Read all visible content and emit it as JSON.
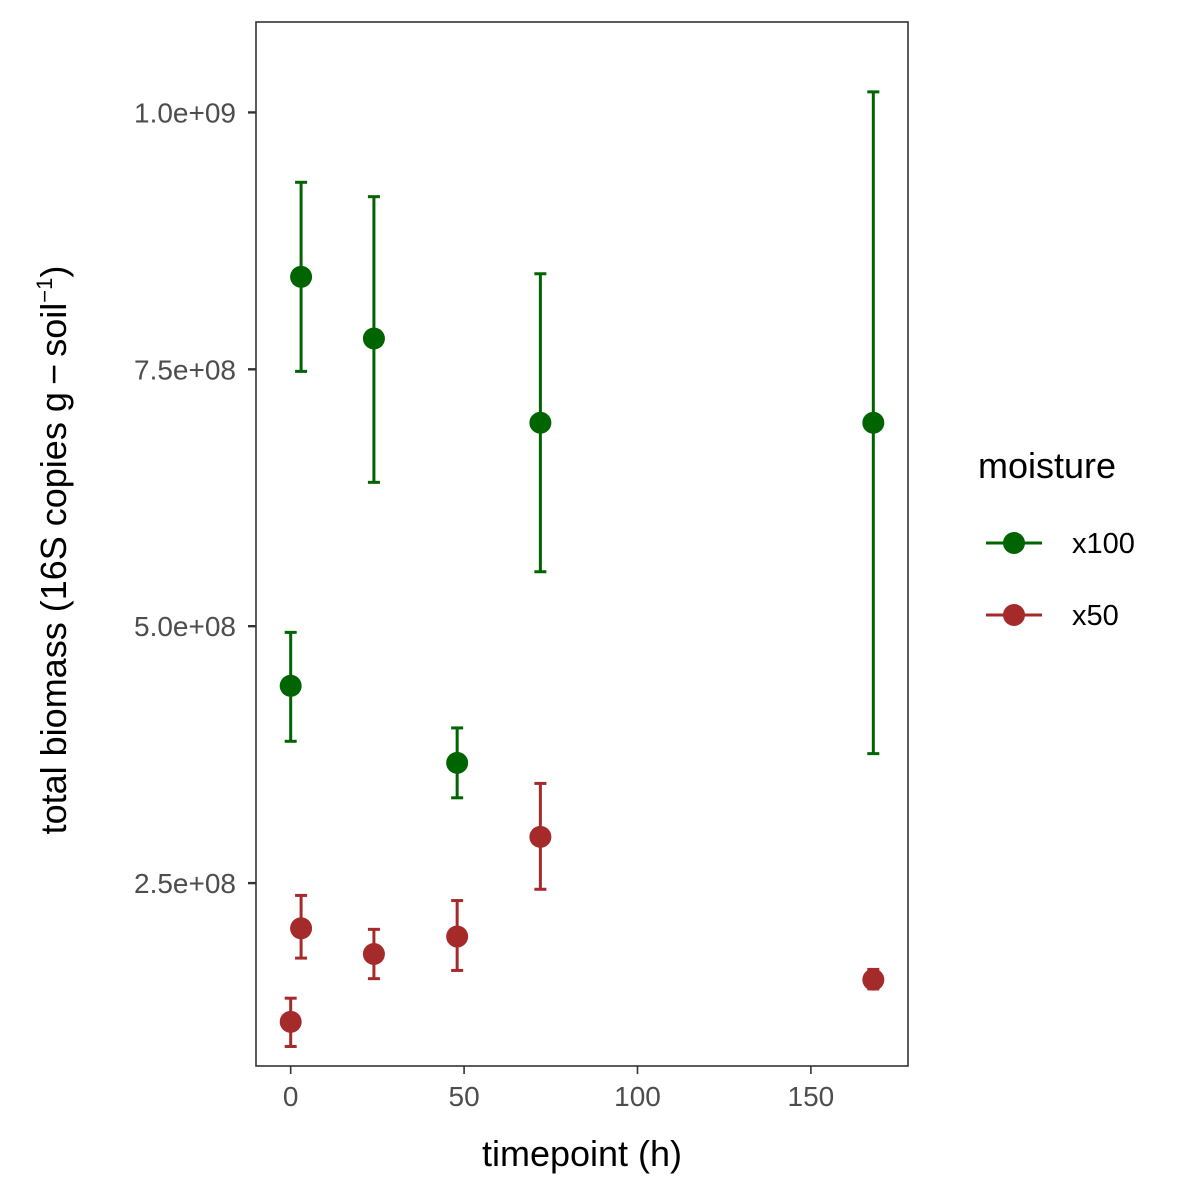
{
  "chart_data": {
    "type": "scatter",
    "xlabel": "timepoint (h)",
    "ylabel_main": "total biomass (16S copies  g − soil",
    "ylabel_sup": "−1",
    "ylabel_close": ")",
    "xlim": [
      -10,
      178
    ],
    "ylim": [
      72000000,
      1088000000
    ],
    "x_ticks": [
      0,
      50,
      100,
      150
    ],
    "x_tick_labels": [
      "0",
      "50",
      "100",
      "150"
    ],
    "y_ticks": [
      250000000,
      500000000,
      750000000,
      1000000000
    ],
    "y_tick_labels": [
      "2.5e+08",
      "5.0e+08",
      "7.5e+08",
      "1.0e+09"
    ],
    "grid": false,
    "legend": {
      "title": "moisture",
      "position": "right"
    },
    "series": [
      {
        "name": "x100",
        "color": "#006400",
        "points": [
          {
            "x": 0,
            "y": 442000000,
            "ymin": 388000000,
            "ymax": 494000000
          },
          {
            "x": 3,
            "y": 840000000,
            "ymin": 748000000,
            "ymax": 932000000
          },
          {
            "x": 24,
            "y": 780000000,
            "ymin": 640000000,
            "ymax": 918000000
          },
          {
            "x": 48,
            "y": 367000000,
            "ymin": 333000000,
            "ymax": 401000000
          },
          {
            "x": 72,
            "y": 698000000,
            "ymin": 553000000,
            "ymax": 843000000
          },
          {
            "x": 168,
            "y": 698000000,
            "ymin": 376000000,
            "ymax": 1020000000
          }
        ]
      },
      {
        "name": "x50",
        "color": "#A52A2A",
        "points": [
          {
            "x": 0,
            "y": 115000000,
            "ymin": 91000000,
            "ymax": 138000000
          },
          {
            "x": 3,
            "y": 206000000,
            "ymin": 177000000,
            "ymax": 238000000
          },
          {
            "x": 24,
            "y": 181000000,
            "ymin": 157000000,
            "ymax": 205000000
          },
          {
            "x": 48,
            "y": 198000000,
            "ymin": 165000000,
            "ymax": 233000000
          },
          {
            "x": 72,
            "y": 295000000,
            "ymin": 244000000,
            "ymax": 347000000
          },
          {
            "x": 168,
            "y": 156000000,
            "ymin": 147000000,
            "ymax": 166000000
          }
        ]
      }
    ]
  }
}
